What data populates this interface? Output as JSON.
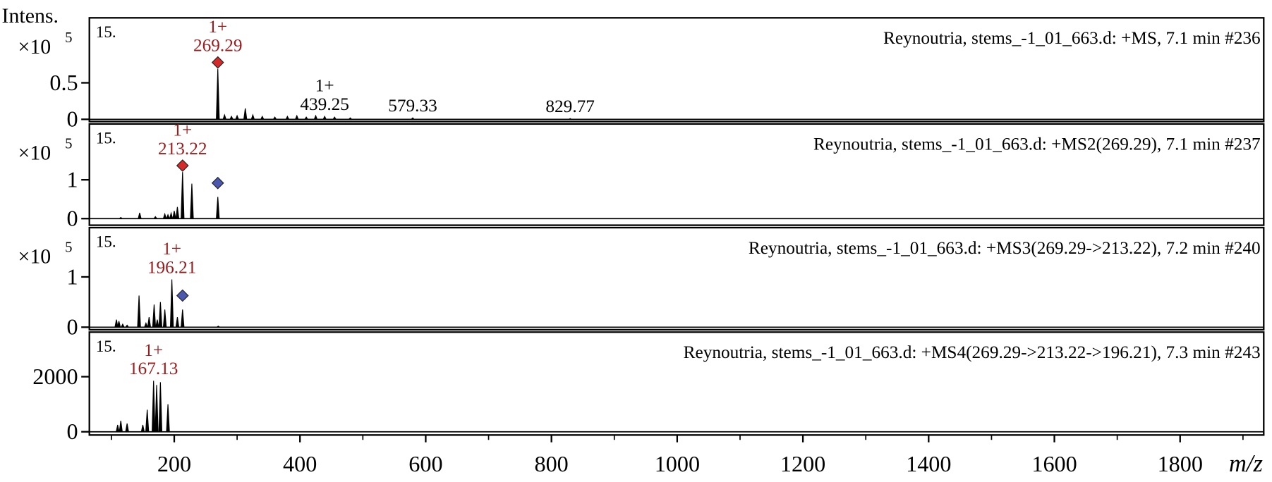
{
  "chart_data": [
    {
      "type": "stem",
      "y_label": "Intens.",
      "y_scale": {
        "base": "×10",
        "exp": "5"
      },
      "panel_label": "15.",
      "title": "Reynoutria, stems_-1_01_663.d: +MS, 7.1 min #236",
      "xlim": [
        65,
        1933
      ],
      "ylim": [
        -0.03,
        1.39
      ],
      "yticks": [
        0,
        0.5
      ],
      "x": [
        269.29,
        280,
        291,
        300,
        313,
        325,
        340,
        360,
        380,
        395,
        410,
        425,
        439.25,
        455,
        480,
        579.33,
        829.77
      ],
      "values": [
        0.69,
        0.06,
        0.04,
        0.05,
        0.15,
        0.06,
        0.04,
        0.03,
        0.04,
        0.05,
        0.03,
        0.05,
        0.04,
        0.03,
        0.02,
        0.02,
        0.01
      ],
      "annotations": [
        {
          "x": 269.29,
          "charge": "1+",
          "color": "#9b1c1c"
        },
        {
          "x": 439.25,
          "charge": "1+",
          "color": "#000000"
        },
        {
          "x": 579.33,
          "color": "#000000"
        },
        {
          "x": 829.77,
          "color": "#000000"
        }
      ],
      "markers": [
        {
          "x": 269.29,
          "y": 0.69,
          "color": "#d42a2a"
        }
      ]
    },
    {
      "type": "stem",
      "y_scale": {
        "base": "×10",
        "exp": "5"
      },
      "panel_label": "15.",
      "title": "Reynoutria, stems_-1_01_663.d: +MS2(269.29), 7.1 min #237",
      "xlim": [
        65,
        1933
      ],
      "ylim": [
        -0.17,
        2.44
      ],
      "yticks": [
        0,
        1
      ],
      "x": [
        115,
        145,
        170,
        185,
        190,
        195,
        200,
        205,
        213.22,
        228,
        269.29
      ],
      "values": [
        0.03,
        0.15,
        0.05,
        0.12,
        0.1,
        0.14,
        0.2,
        0.3,
        1.2,
        0.9,
        0.56
      ],
      "annotations": [
        {
          "x": 213.22,
          "charge": "1+",
          "color": "#9b1c1c"
        }
      ],
      "markers": [
        {
          "x": 213.22,
          "y": 1.2,
          "color": "#d42a2a"
        },
        {
          "x": 269.29,
          "y": 0.75,
          "color": "#4a58b0"
        }
      ]
    },
    {
      "type": "stem",
      "y_scale": {
        "base": "×10",
        "exp": "5"
      },
      "panel_label": "15.",
      "title": "Reynoutria, stems_-1_01_663.d: +MS3(269.29->213.22), 7.2 min #240",
      "xlim": [
        65,
        1933
      ],
      "ylim": [
        -0.05,
        1.98
      ],
      "yticks": [
        0,
        1
      ],
      "x": [
        108,
        112,
        118,
        125,
        144,
        155,
        160,
        168,
        173,
        178,
        185,
        196.21,
        205,
        213.22,
        270
      ],
      "values": [
        0.15,
        0.12,
        0.06,
        0.04,
        0.63,
        0.08,
        0.2,
        0.45,
        0.15,
        0.5,
        0.35,
        0.95,
        0.2,
        0.35,
        0.02
      ],
      "annotations": [
        {
          "x": 196.21,
          "charge": "1+",
          "color": "#9b1c1c"
        }
      ],
      "markers": [
        {
          "x": 213.22,
          "y": 0.5,
          "color": "#4a58b0"
        }
      ]
    },
    {
      "type": "stem",
      "panel_label": "15.",
      "title": "Reynoutria, stems_-1_01_663.d: +MS4(269.29->213.22->196.21), 7.3 min #243",
      "xlim": [
        65,
        1933
      ],
      "ylim": [
        -118,
        3618
      ],
      "yticks": [
        0,
        2000
      ],
      "x": [
        110,
        115,
        125,
        150,
        157,
        167.13,
        172,
        178,
        190
      ],
      "values": [
        250,
        400,
        300,
        250,
        800,
        1850,
        1700,
        1800,
        1000
      ],
      "annotations": [
        {
          "x": 167.13,
          "charge": "1+",
          "color": "#9b1c1c"
        }
      ],
      "xticks": [
        200,
        400,
        600,
        800,
        1000,
        1200,
        1400,
        1600,
        1800
      ],
      "xminor": [
        100,
        300,
        500,
        700,
        900,
        1100,
        1300,
        1500,
        1700,
        1900
      ],
      "x_label": "m/z"
    }
  ]
}
